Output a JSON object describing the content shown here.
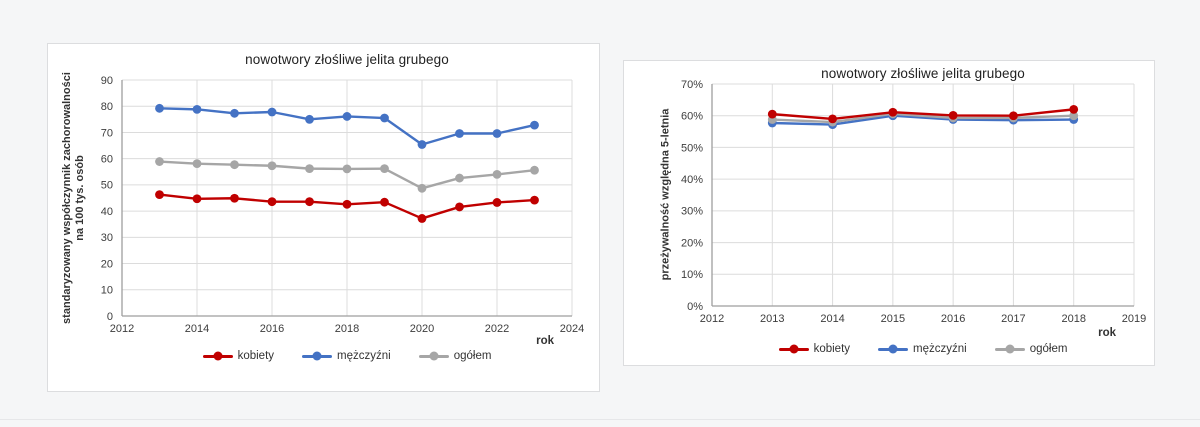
{
  "page": {
    "background": "#f5f6f7",
    "panel_border": "#dcdddf"
  },
  "chart_data": [
    {
      "id": "incidence",
      "type": "line",
      "title": "nowotwory złośliwe jelita grubego",
      "ylabel_lines": [
        "standaryzowany współczynnik zachorowalności",
        "na 100 tys. osób"
      ],
      "xlabel": "rok",
      "x": [
        2013,
        2014,
        2015,
        2016,
        2017,
        2018,
        2019,
        2020,
        2021,
        2022,
        2023
      ],
      "series": [
        {
          "name": "kobiety",
          "color": "#C00000",
          "values": [
            46.3,
            44.7,
            44.9,
            43.6,
            43.6,
            42.6,
            43.4,
            37.2,
            41.6,
            43.3,
            44.2
          ]
        },
        {
          "name": "mężczyźni",
          "color": "#4472C4",
          "values": [
            79.2,
            78.8,
            77.3,
            77.8,
            75.0,
            76.1,
            75.5,
            65.4,
            69.6,
            69.6,
            72.8
          ]
        },
        {
          "name": "ogółem",
          "color": "#A6A6A6",
          "values": [
            58.9,
            58.1,
            57.7,
            57.3,
            56.2,
            56.1,
            56.2,
            48.7,
            52.6,
            54.0,
            55.6
          ]
        }
      ],
      "xlim": [
        2012,
        2024
      ],
      "xtick_step": 2,
      "x_grid_step": 2,
      "ylim": [
        0,
        90
      ],
      "ytick_step": 10,
      "y_format": "plain",
      "grid": true,
      "legend_position": "bottom"
    },
    {
      "id": "survival",
      "type": "line",
      "title": "nowotwory złośliwe jelita grubego",
      "ylabel": "przeżywalność względna 5-letnia",
      "xlabel": "rok",
      "x": [
        2013,
        2014,
        2015,
        2016,
        2017,
        2018
      ],
      "series": [
        {
          "name": "kobiety",
          "color": "#C00000",
          "values": [
            60.5,
            59.0,
            61.1,
            60.1,
            60.0,
            62.0
          ]
        },
        {
          "name": "mężczyźni",
          "color": "#4472C4",
          "values": [
            57.7,
            57.2,
            60.0,
            58.8,
            58.6,
            58.8
          ]
        },
        {
          "name": "ogółem",
          "color": "#A6A6A6",
          "values": [
            58.8,
            58.0,
            60.6,
            59.3,
            59.3,
            60.0
          ]
        }
      ],
      "xlim": [
        2012,
        2019
      ],
      "xtick_step": 1,
      "x_grid_step": 1,
      "ylim": [
        0,
        70
      ],
      "ytick_step": 10,
      "y_format": "percent",
      "grid": true,
      "legend_position": "bottom"
    }
  ]
}
